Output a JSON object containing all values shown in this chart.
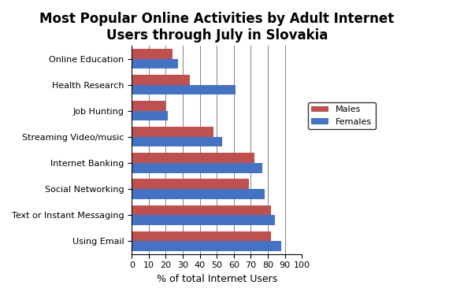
{
  "title": "Most Popular Online Activities by Adult Internet\nUsers through July in Slovakia",
  "categories": [
    "Online Education",
    "Health Research",
    "Job Hunting",
    "Streaming Video/music",
    "Internet Banking",
    "Social Networking",
    "Text or Instant Messaging",
    "Using Email"
  ],
  "females": [
    27,
    61,
    21,
    53,
    77,
    78,
    84,
    88
  ],
  "males": [
    24,
    34,
    20,
    48,
    72,
    69,
    82,
    82
  ],
  "female_color": "#4472C4",
  "male_color": "#C0504D",
  "xlabel": "% of total Internet Users",
  "xlim": [
    0,
    100
  ],
  "xticks": [
    0,
    10,
    20,
    30,
    40,
    50,
    60,
    70,
    80,
    90,
    100
  ],
  "legend_labels": [
    "Females",
    "Males"
  ],
  "bar_height": 0.38,
  "title_fontsize": 12,
  "axis_fontsize": 9,
  "tick_fontsize": 8,
  "background_color": "#ffffff"
}
